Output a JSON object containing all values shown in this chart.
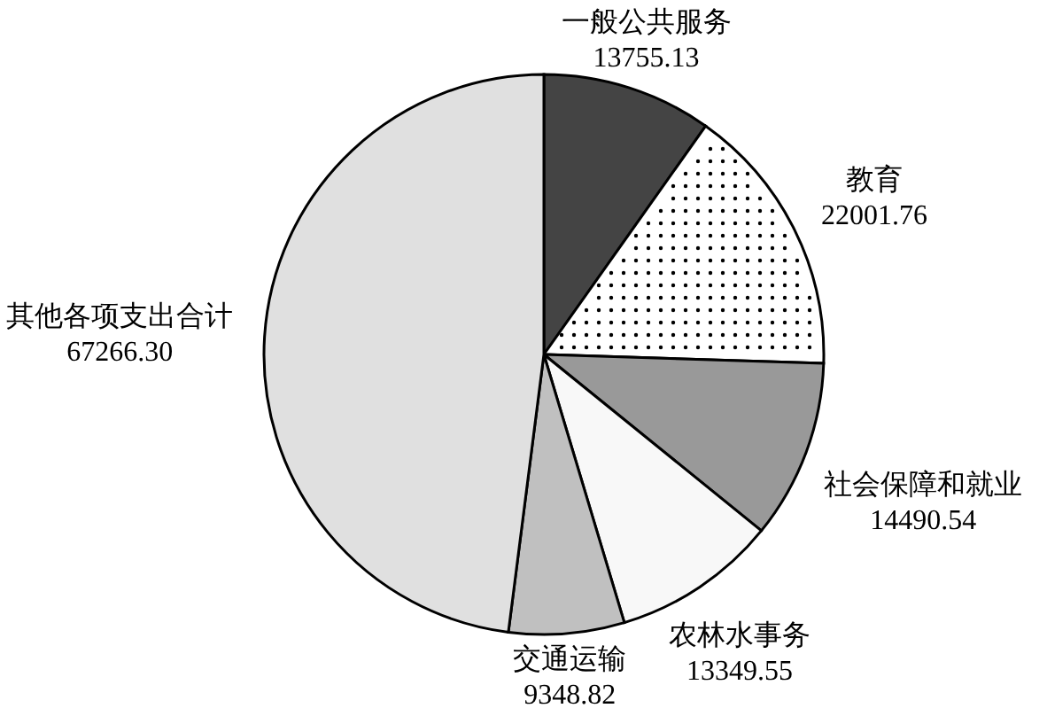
{
  "chart_data": {
    "type": "pie",
    "categories": [
      "一般公共服务",
      "教育",
      "社会保障和就业",
      "农林水事务",
      "交通运输",
      "其他各项支出合计"
    ],
    "values": [
      13755.13,
      22001.76,
      14490.54,
      13349.55,
      9348.82,
      67266.3
    ],
    "value_labels": [
      "13755.13",
      "22001.76",
      "14490.54",
      "13349.55",
      "9348.82",
      "67266.30"
    ],
    "colors": [
      "#444444",
      "#ffffff",
      "#999999",
      "#f8f8f8",
      "#c0c0c0",
      "#e0e0e0"
    ]
  }
}
